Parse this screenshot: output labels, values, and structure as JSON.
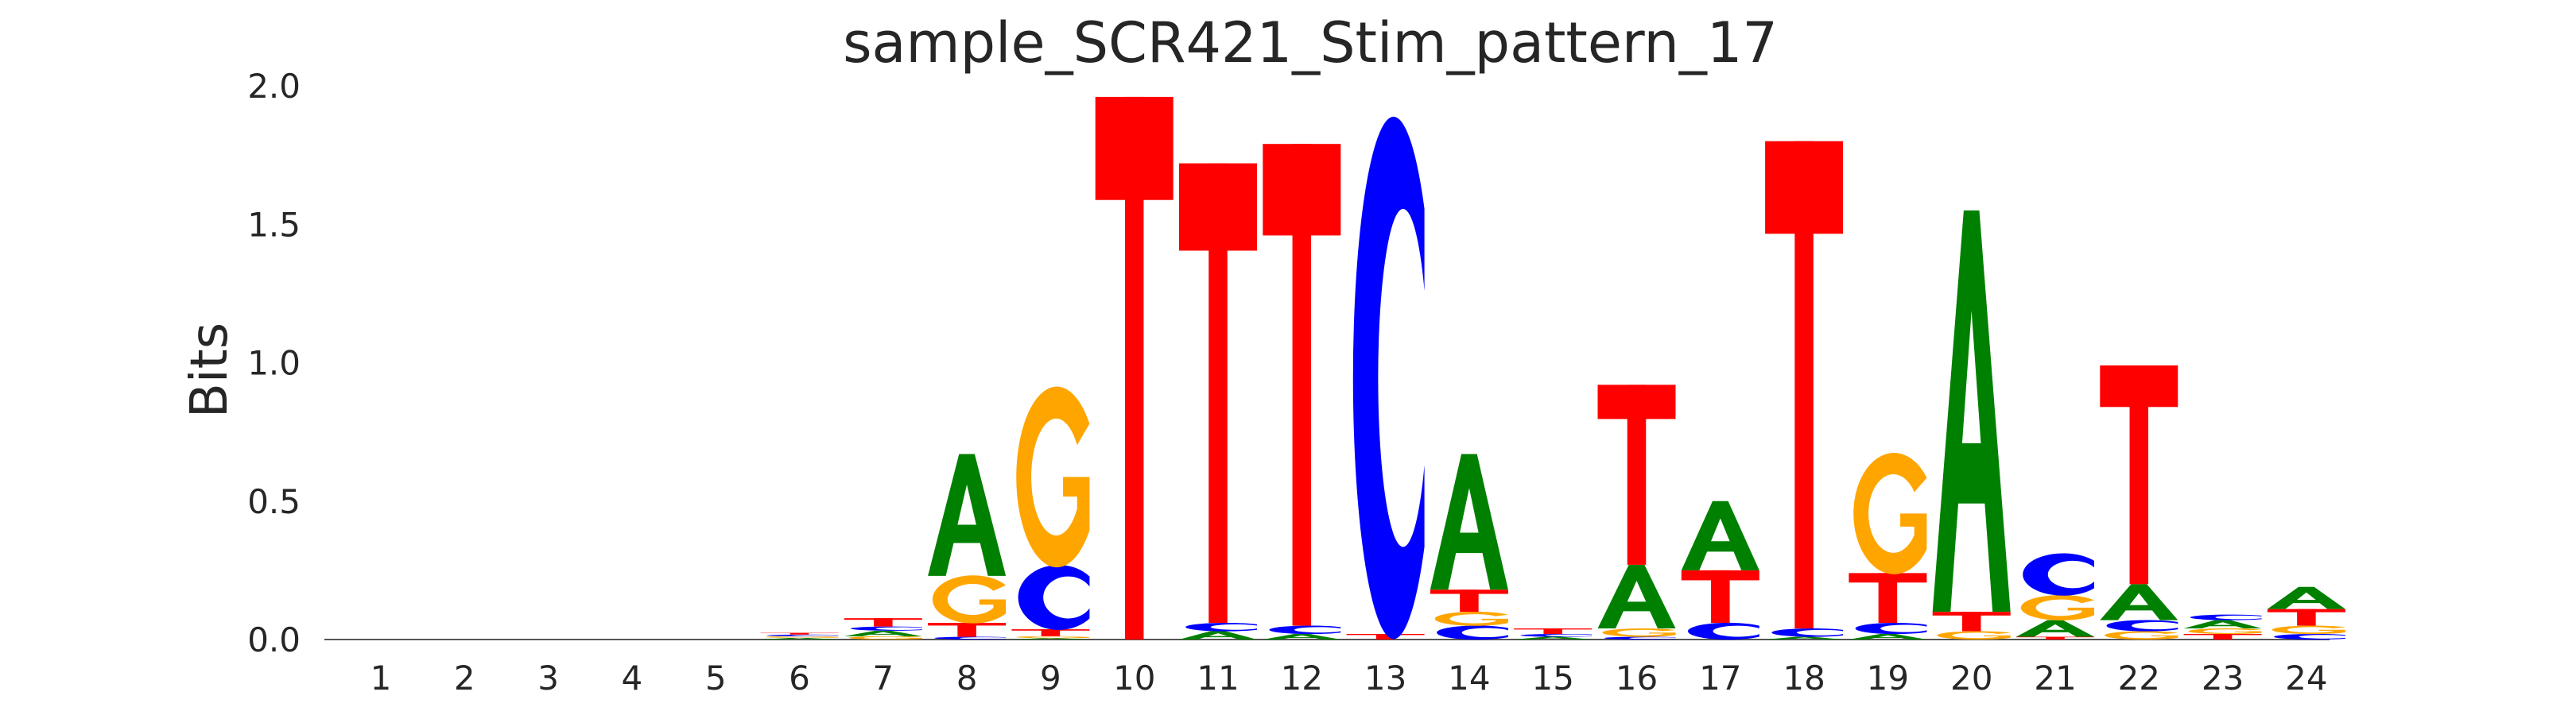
{
  "chart_data": {
    "type": "sequence-logo",
    "title": "sample_SCR421_Stim_pattern_17",
    "xlabel": "",
    "ylabel": "Bits",
    "ylim": [
      0,
      2.0
    ],
    "yticks": [
      "0.0",
      "0.5",
      "1.0",
      "1.5",
      "2.0"
    ],
    "positions": [
      "1",
      "2",
      "3",
      "4",
      "5",
      "6",
      "7",
      "8",
      "9",
      "10",
      "11",
      "12",
      "13",
      "14",
      "15",
      "16",
      "17",
      "18",
      "19",
      "20",
      "21",
      "22",
      "23",
      "24"
    ],
    "colors": {
      "A": "#008000",
      "C": "#0000ff",
      "G": "#ffa500",
      "T": "#ff0000"
    },
    "stacks": [
      [],
      [],
      [],
      [],
      [],
      [
        [
          "A",
          0.006
        ],
        [
          "G",
          0.006
        ],
        [
          "C",
          0.006
        ],
        [
          "T",
          0.006
        ]
      ],
      [
        [
          "G",
          0.012
        ],
        [
          "A",
          0.02
        ],
        [
          "C",
          0.015
        ],
        [
          "T",
          0.03
        ]
      ],
      [
        [
          "C",
          0.01
        ],
        [
          "T",
          0.05
        ],
        [
          "G",
          0.17
        ],
        [
          "A",
          0.44
        ]
      ],
      [
        [
          "A",
          0.005
        ],
        [
          "G",
          0.007
        ],
        [
          "T",
          0.025
        ],
        [
          "C",
          0.23
        ],
        [
          "G",
          0.64
        ]
      ],
      [
        [
          "T",
          1.96
        ]
      ],
      [
        [
          "A",
          0.03
        ],
        [
          "C",
          0.03
        ],
        [
          "T",
          1.66
        ]
      ],
      [
        [
          "A",
          0.02
        ],
        [
          "C",
          0.03
        ],
        [
          "T",
          1.74
        ]
      ],
      [
        [
          "T",
          0.02
        ],
        [
          "C",
          1.85
        ]
      ],
      [
        [
          "C",
          0.05
        ],
        [
          "G",
          0.05
        ],
        [
          "T",
          0.08
        ],
        [
          "A",
          0.49
        ]
      ],
      [
        [
          "A",
          0.01
        ],
        [
          "C",
          0.01
        ],
        [
          "T",
          0.02
        ]
      ],
      [
        [
          "C",
          0.01
        ],
        [
          "G",
          0.03
        ],
        [
          "A",
          0.23
        ],
        [
          "T",
          0.65
        ]
      ],
      [
        [
          "C",
          0.06
        ],
        [
          "T",
          0.19
        ],
        [
          "A",
          0.25
        ]
      ],
      [
        [
          "A",
          0.01
        ],
        [
          "C",
          0.03
        ],
        [
          "T",
          1.76
        ]
      ],
      [
        [
          "A",
          0.02
        ],
        [
          "C",
          0.04
        ],
        [
          "T",
          0.18
        ],
        [
          "G",
          0.43
        ]
      ],
      [
        [
          "G",
          0.03
        ],
        [
          "T",
          0.07
        ],
        [
          "A",
          1.45
        ]
      ],
      [
        [
          "T",
          0.01
        ],
        [
          "A",
          0.06
        ],
        [
          "G",
          0.09
        ],
        [
          "C",
          0.15
        ]
      ],
      [
        [
          "G",
          0.03
        ],
        [
          "C",
          0.04
        ],
        [
          "A",
          0.13
        ],
        [
          "T",
          0.79
        ]
      ],
      [
        [
          "T",
          0.02
        ],
        [
          "G",
          0.02
        ],
        [
          "A",
          0.03
        ],
        [
          "C",
          0.02
        ]
      ],
      [
        [
          "C",
          0.02
        ],
        [
          "G",
          0.03
        ],
        [
          "T",
          0.06
        ],
        [
          "A",
          0.08
        ]
      ]
    ]
  }
}
